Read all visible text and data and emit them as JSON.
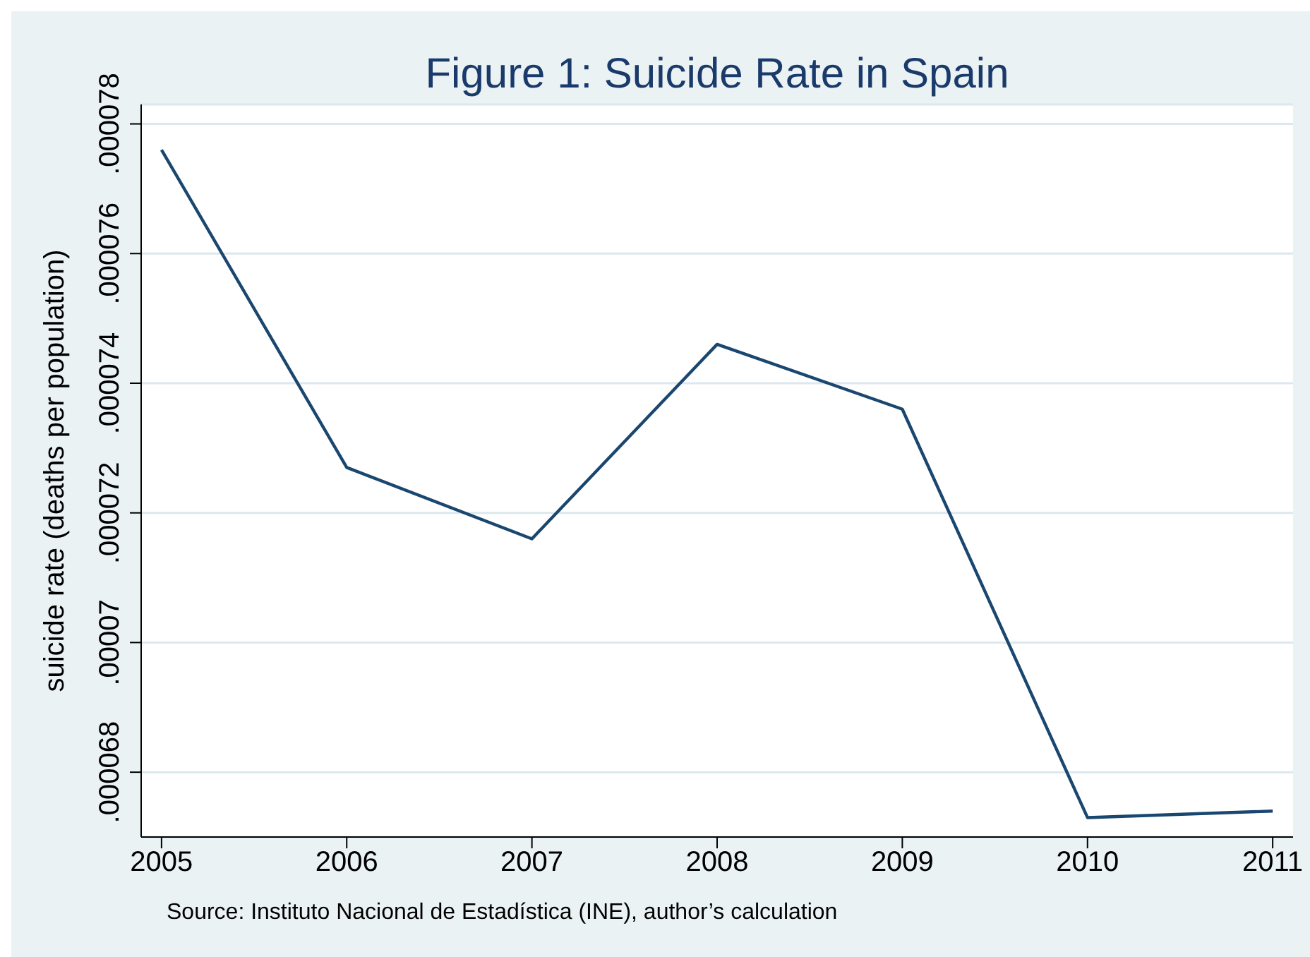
{
  "chart_data": {
    "type": "line",
    "title": "Figure 1: Suicide Rate in Spain",
    "ylabel": "suicide rate (deaths per population)",
    "annotations": [
      "Source: Instituto Nacional de Estadística (INE), author’s calculation"
    ],
    "x": [
      2005,
      2006,
      2007,
      2008,
      2009,
      2010,
      2011
    ],
    "series": [
      {
        "color": "#1a476f",
        "values": [
          7.76e-05,
          7.27e-05,
          7.16e-05,
          7.46e-05,
          7.36e-05,
          6.73e-05,
          6.74e-05
        ]
      }
    ],
    "xlim": [
      2004.89,
      2011.11
    ],
    "xticks": [
      2005,
      2006,
      2007,
      2008,
      2009,
      2010,
      2011
    ],
    "ylim": [
      6.7e-05,
      7.83e-05
    ],
    "yticks": [
      {
        "value": 6.8e-05,
        "label": ".000068"
      },
      {
        "value": 7e-05,
        "label": ".00007"
      },
      {
        "value": 7.2e-05,
        "label": ".000072"
      },
      {
        "value": 7.4e-05,
        "label": ".000074"
      },
      {
        "value": 7.6e-05,
        "label": ".000076"
      },
      {
        "value": 7.8e-05,
        "label": ".000078"
      }
    ],
    "grid": "y",
    "legend": false,
    "marker": "none",
    "line_style": "solid"
  }
}
